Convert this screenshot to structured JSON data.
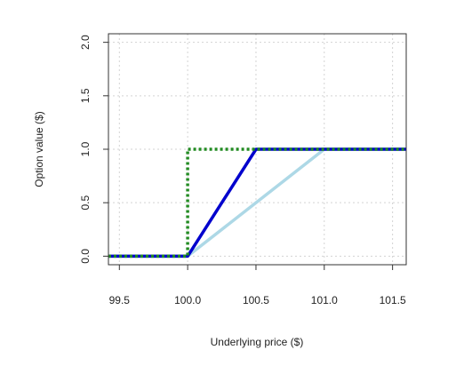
{
  "chart_data": {
    "type": "line",
    "title": "",
    "xlabel": "Underlying price ($)",
    "ylabel": "Option value ($)",
    "xlim": [
      99.42,
      101.6
    ],
    "ylim": [
      -0.08,
      2.08
    ],
    "xticks": [
      "99.5",
      "100.0",
      "100.5",
      "101.0",
      "101.5"
    ],
    "yticks": [
      "0.0",
      "0.5",
      "1.0",
      "1.5",
      "2.0"
    ],
    "grid": true,
    "legend": "none",
    "series": [
      {
        "color": "#add8e6",
        "style": "solid",
        "x": [
          99.42,
          100.0,
          101.0,
          101.6
        ],
        "y": [
          0,
          0,
          1,
          1
        ]
      },
      {
        "color": "#0000cd",
        "style": "solid",
        "x": [
          99.42,
          100.0,
          100.5,
          101.6
        ],
        "y": [
          0,
          0,
          1,
          1
        ]
      },
      {
        "color": "#228b22",
        "style": "dashed",
        "x": [
          99.42,
          100.0,
          100.0,
          101.6
        ],
        "y": [
          0,
          0,
          1,
          1
        ]
      }
    ]
  }
}
